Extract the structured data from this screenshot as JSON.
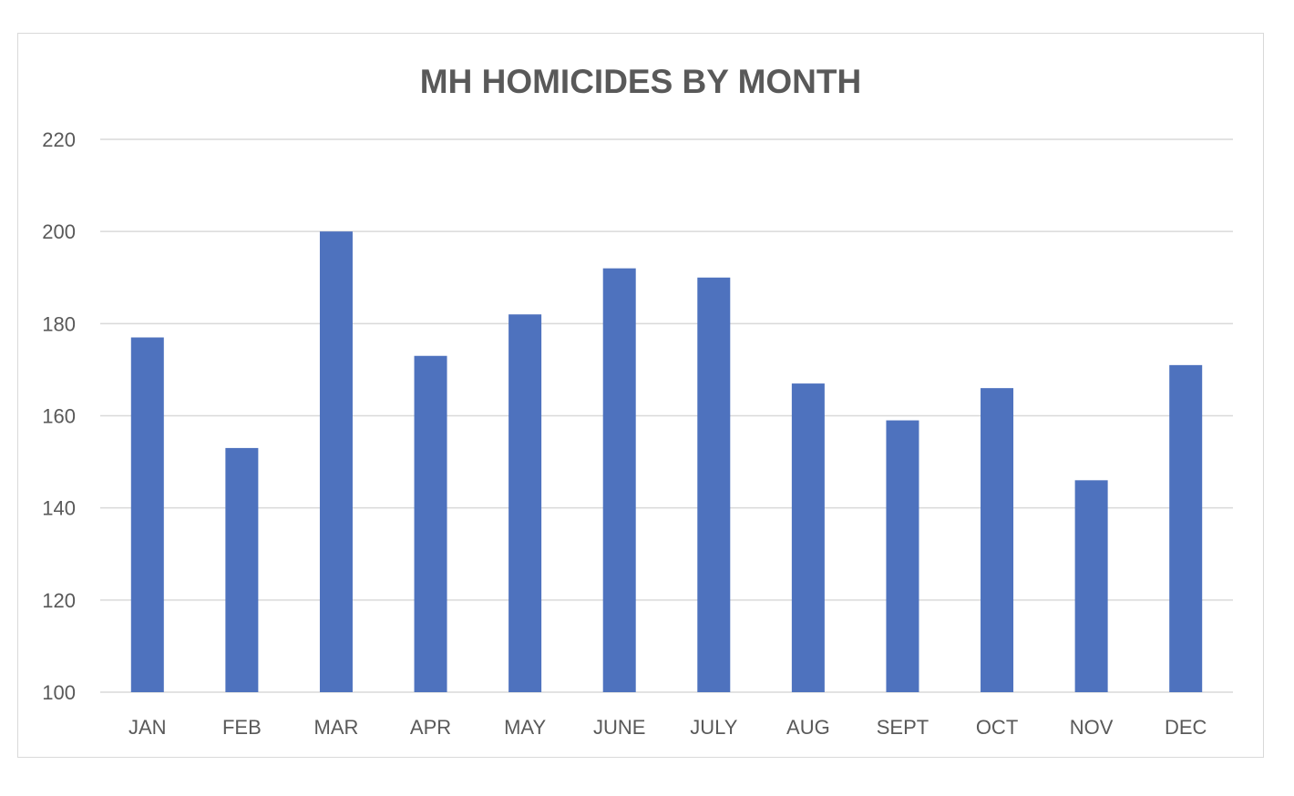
{
  "chart_data": {
    "type": "bar",
    "title": "MH HOMICIDES BY MONTH",
    "xlabel": "",
    "ylabel": "",
    "categories": [
      "JAN",
      "FEB",
      "MAR",
      "APR",
      "MAY",
      "JUNE",
      "JULY",
      "AUG",
      "SEPT",
      "OCT",
      "NOV",
      "DEC"
    ],
    "series": [
      {
        "values": [
          177,
          153,
          200,
          173,
          182,
          192,
          190,
          167,
          159,
          166,
          146,
          171
        ]
      }
    ],
    "ylim": [
      100,
      220
    ],
    "yticks": [
      100,
      120,
      140,
      160,
      180,
      200,
      220
    ],
    "grid": true,
    "legend": "none",
    "colors": {
      "bar": "#4e72be",
      "grid": "#d9d9d9",
      "text": "#595959",
      "border": "#d9d9d9"
    }
  }
}
